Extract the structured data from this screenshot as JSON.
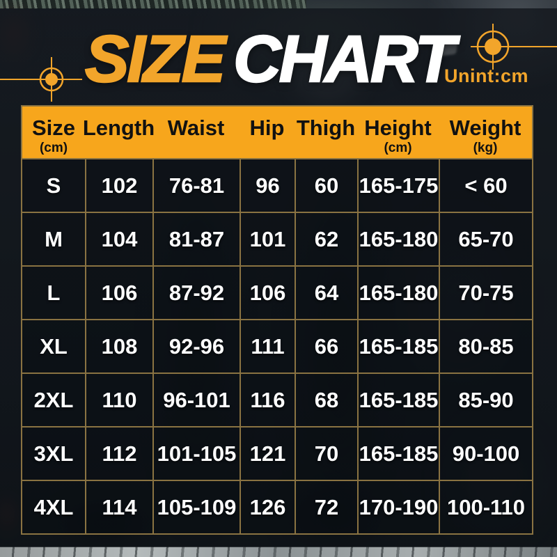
{
  "title": {
    "highlight": "SIZE",
    "rest": "CHART",
    "unit_note": "Unint:cm"
  },
  "colors": {
    "accent_gold": "#F2A52B",
    "header_background": "#F7A61C",
    "grid_border": "#8A7342",
    "data_text": "#FFFFFF",
    "header_text": "#111111"
  },
  "chart_data": {
    "type": "table",
    "title": "SIZE CHART",
    "unit_note": "Unint:cm",
    "columns": [
      {
        "label": "Size",
        "unit": "(cm)"
      },
      {
        "label": "Length",
        "unit": ""
      },
      {
        "label": "Waist",
        "unit": ""
      },
      {
        "label": "Hip",
        "unit": ""
      },
      {
        "label": "Thigh",
        "unit": ""
      },
      {
        "label": "Height",
        "unit": "(cm)"
      },
      {
        "label": "Weight",
        "unit": "(kg)"
      }
    ],
    "rows": [
      [
        "S",
        "102",
        "76-81",
        "96",
        "60",
        "165-175",
        "< 60"
      ],
      [
        "M",
        "104",
        "81-87",
        "101",
        "62",
        "165-180",
        "65-70"
      ],
      [
        "L",
        "106",
        "87-92",
        "106",
        "64",
        "165-180",
        "70-75"
      ],
      [
        "XL",
        "108",
        "92-96",
        "111",
        "66",
        "165-185",
        "80-85"
      ],
      [
        "2XL",
        "110",
        "96-101",
        "116",
        "68",
        "165-185",
        "85-90"
      ],
      [
        "3XL",
        "112",
        "101-105",
        "121",
        "70",
        "165-185",
        "90-100"
      ],
      [
        "4XL",
        "114",
        "105-109",
        "126",
        "72",
        "170-190",
        "100-110"
      ]
    ]
  }
}
